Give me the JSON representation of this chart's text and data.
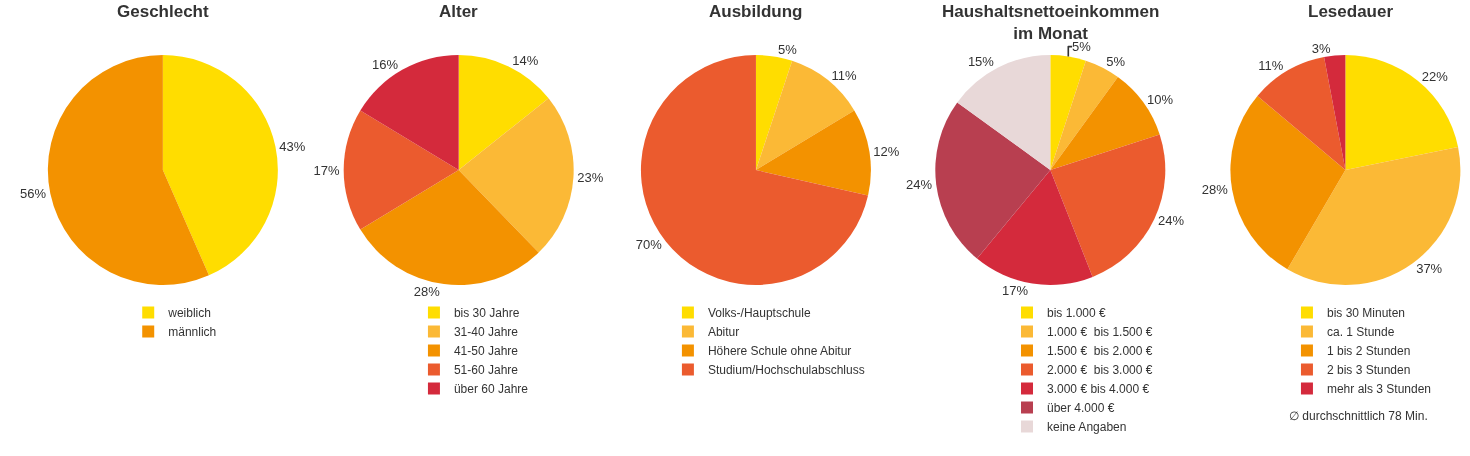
{
  "chart_data": [
    {
      "type": "pie",
      "title": "Geschlecht",
      "categories": [
        "weiblich",
        "männlich"
      ],
      "values": [
        43,
        56
      ],
      "value_labels": [
        "43%",
        "56%"
      ],
      "colors": [
        "#ffdd00",
        "#f39200"
      ],
      "legend": "bottom"
    },
    {
      "type": "pie",
      "title": "Alter",
      "categories": [
        "bis 30 Jahre",
        "31-40 Jahre",
        "41-50 Jahre",
        "51-60 Jahre",
        "über 60 Jahre"
      ],
      "values": [
        14,
        23,
        28,
        17,
        16
      ],
      "value_labels": [
        "14%",
        "23%",
        "28%",
        "17%",
        "16%"
      ],
      "colors": [
        "#ffdd00",
        "#fbb936",
        "#f39200",
        "#eb5b2e",
        "#d42a3c"
      ],
      "legend": "bottom"
    },
    {
      "type": "pie",
      "title": "Ausbildung",
      "categories": [
        "Volks-/Hauptschule",
        "Abitur",
        "Höhere Schule ohne Abitur",
        "Studium/Hochschulabschluss"
      ],
      "values": [
        5,
        11,
        12,
        70
      ],
      "value_labels": [
        "5%",
        "11%",
        "12%",
        "70%"
      ],
      "colors": [
        "#ffdd00",
        "#fbb936",
        "#f39200",
        "#eb5b2e"
      ],
      "legend": "bottom"
    },
    {
      "type": "pie",
      "title": "Haushaltsnettoeinkommen\nim Monat",
      "categories": [
        "bis 1.000 €",
        "1.000 €  bis 1.500 €",
        "1.500 €  bis 2.000 €",
        "2.000 €  bis 3.000 €",
        "3.000 € bis 4.000 €",
        "über 4.000 €",
        "keine Angaben"
      ],
      "values": [
        5,
        5,
        10,
        24,
        17,
        24,
        15
      ],
      "value_labels": [
        "5%",
        "5%",
        "10%",
        "24%",
        "17%",
        "24%",
        "15%"
      ],
      "colors": [
        "#ffdd00",
        "#fbb936",
        "#f39200",
        "#eb5b2e",
        "#d42a3c",
        "#b83f50",
        "#e8d8d8"
      ],
      "legend": "bottom"
    },
    {
      "type": "pie",
      "title": "Lesedauer",
      "categories": [
        "bis 30 Minuten",
        "ca. 1 Stunde",
        "1 bis 2 Stunden",
        "2 bis 3 Stunden",
        "mehr als 3 Stunden"
      ],
      "values": [
        22,
        37,
        28,
        11,
        3
      ],
      "value_labels": [
        "22%",
        "37%",
        "28%",
        "11%",
        "3%"
      ],
      "colors": [
        "#ffdd00",
        "#fbb936",
        "#f39200",
        "#eb5b2e",
        "#d42a3c"
      ],
      "legend": "bottom",
      "annotations": [
        "∅ durchschnittlich 78 Min."
      ]
    }
  ]
}
